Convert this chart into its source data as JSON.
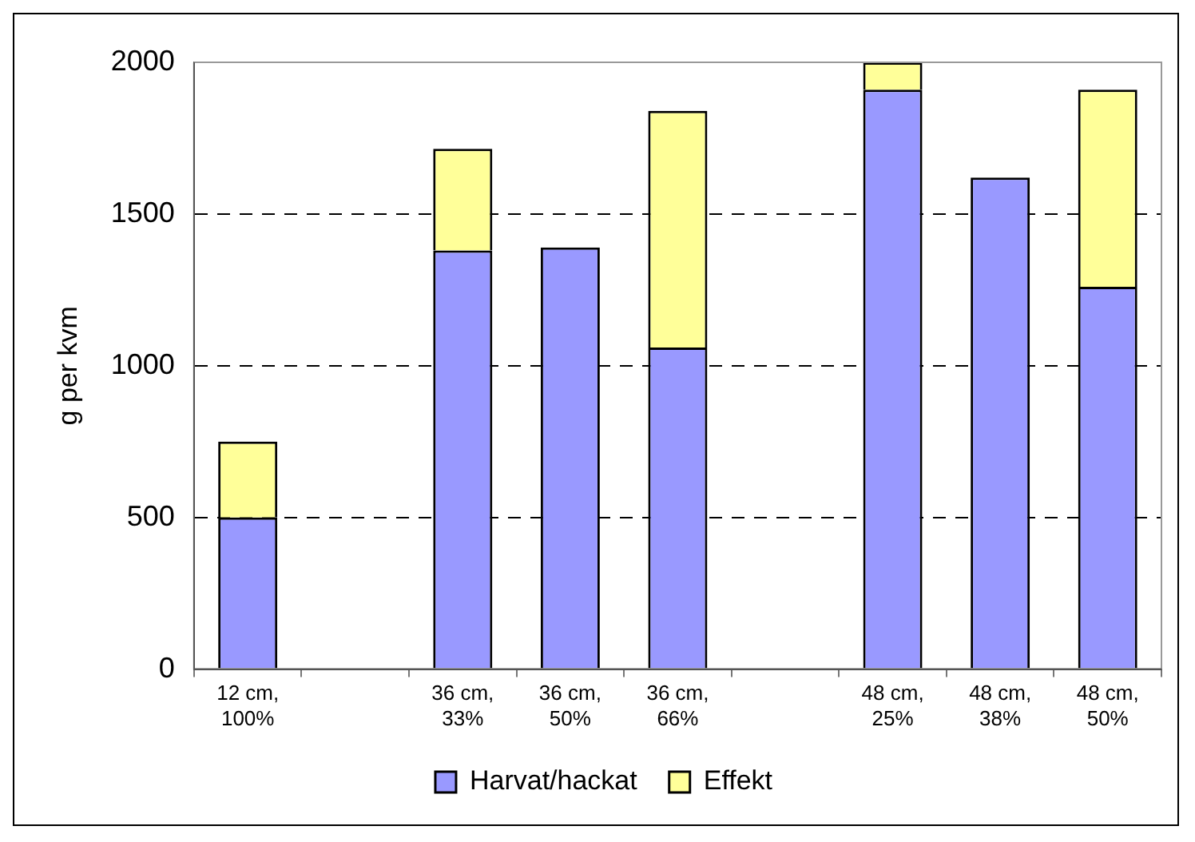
{
  "chart_data": {
    "type": "bar",
    "ylabel": "g per kvm",
    "categories": [
      "12 cm, 100%",
      null,
      "36 cm, 33%",
      "36 cm, 50%",
      "36 cm, 66%",
      null,
      "48 cm, 25%",
      "48 cm, 38%",
      "48 cm, 50%"
    ],
    "stacked": true,
    "ylim": [
      0,
      2000
    ],
    "yticks": [
      0,
      500,
      1000,
      1500,
      2000
    ],
    "grid": "y",
    "legend": "bottom",
    "series": [
      {
        "name": "Harvat/hackat",
        "color": "#9999ff",
        "values": [
          500,
          null,
          1380,
          1390,
          1060,
          null,
          1910,
          1620,
          1260
        ]
      },
      {
        "name": "Effekt",
        "color": "#ffff99",
        "values": [
          250,
          null,
          335,
          null,
          780,
          null,
          90,
          null,
          650
        ]
      }
    ]
  }
}
